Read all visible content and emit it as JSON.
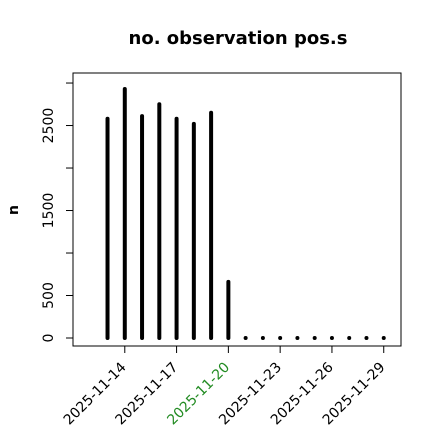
{
  "chart_data": {
    "type": "bar",
    "bar_style": "spike",
    "title": "no. observation pos.s",
    "y_label": "n",
    "x": [
      "2025-11-13",
      "2025-11-14",
      "2025-11-15",
      "2025-11-16",
      "2025-11-17",
      "2025-11-18",
      "2025-11-19",
      "2025-11-20",
      "2025-11-21",
      "2025-11-22",
      "2025-11-23",
      "2025-11-24",
      "2025-11-25",
      "2025-11-26",
      "2025-11-27",
      "2025-11-28",
      "2025-11-29"
    ],
    "values": [
      2580,
      2930,
      2610,
      2750,
      2580,
      2520,
      2650,
      660,
      0,
      0,
      0,
      0,
      0,
      0,
      0,
      0,
      0
    ],
    "color": "#000000",
    "xlim": [
      "2025-11-11",
      "2025-11-30"
    ],
    "xticks": [
      "2025-11-14",
      "2025-11-17",
      "2025-11-20",
      "2025-11-23",
      "2025-11-26",
      "2025-11-29"
    ],
    "highlight_xtick": "2025-11-20",
    "highlight_color": "#228b22",
    "ylim": [
      -94,
      3118
    ],
    "yticks": [
      0,
      500,
      {
        "value": 1000,
        "label": null
      },
      1500,
      {
        "value": 2000,
        "label": null
      },
      2500,
      {
        "value": 3000,
        "label": null
      }
    ],
    "grid": false
  }
}
